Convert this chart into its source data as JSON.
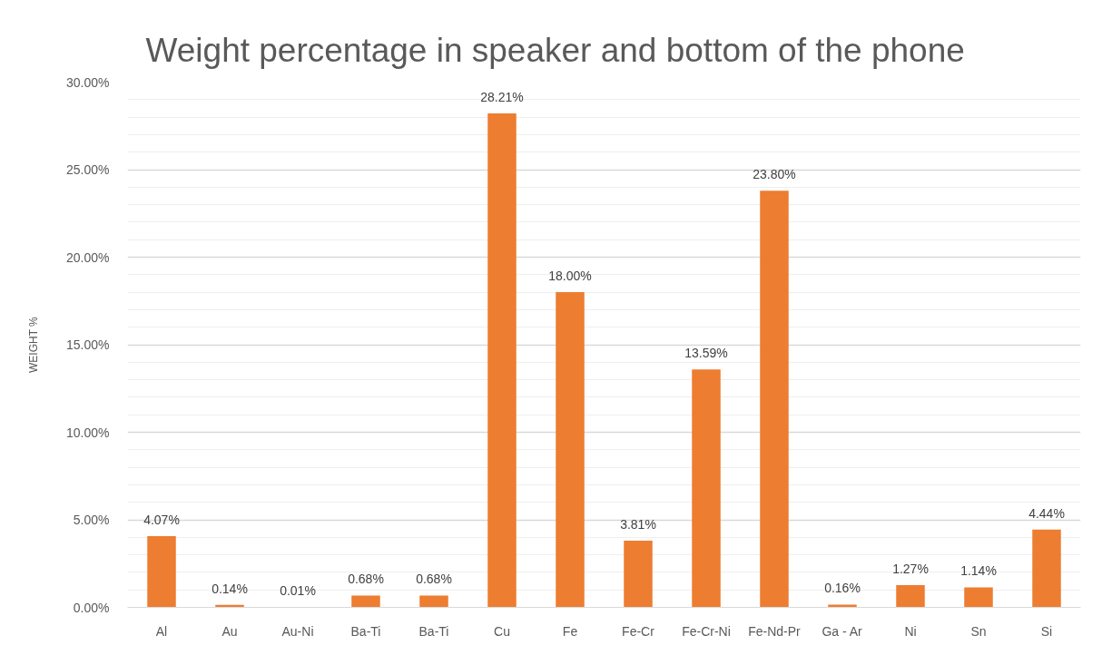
{
  "chart_data": {
    "type": "bar",
    "title": "Weight percentage in speaker and bottom of the phone",
    "ylabel": "WEIGHT %",
    "categories": [
      "Al",
      "Au",
      "Au-Ni",
      "Ba-Ti",
      "Ba-Ti",
      "Cu",
      "Fe",
      "Fe-Cr",
      "Fe-Cr-Ni",
      "Fe-Nd-Pr",
      "Ga - Ar",
      "Ni",
      "Sn",
      "Si"
    ],
    "values": [
      4.07,
      0.14,
      0.01,
      0.68,
      0.68,
      28.21,
      18.0,
      3.81,
      13.59,
      23.8,
      0.16,
      1.27,
      1.14,
      4.44
    ],
    "value_labels": [
      "4.07%",
      "0.14%",
      "0.01%",
      "0.68%",
      "0.68%",
      "28.21%",
      "18.00%",
      "3.81%",
      "13.59%",
      "23.80%",
      "0.16%",
      "1.27%",
      "1.14%",
      "4.44%"
    ],
    "color": "#ed7d31",
    "ylim": [
      0,
      30
    ],
    "yticks": [
      {
        "value": 0,
        "label": "0.00%"
      },
      {
        "value": 5,
        "label": "5.00%"
      },
      {
        "value": 10,
        "label": "10.00%"
      },
      {
        "value": 15,
        "label": "15.00%"
      },
      {
        "value": 20,
        "label": "20.00%"
      },
      {
        "value": 25,
        "label": "25.00%"
      },
      {
        "value": 30,
        "label": "30.00%"
      }
    ],
    "grid": "y"
  }
}
